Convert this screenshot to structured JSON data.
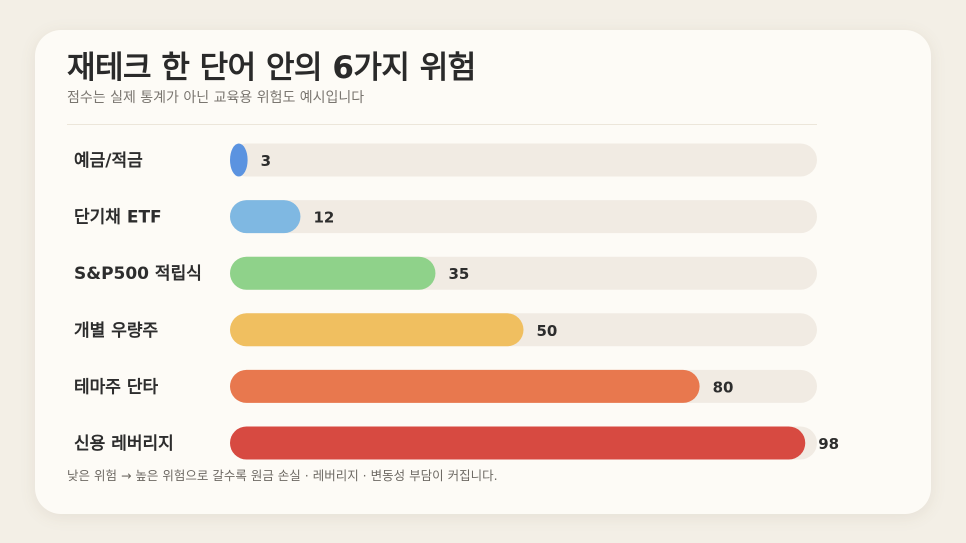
{
  "title": "재테크 한 단어 안의 6가지 위험",
  "subtitle": "점수는 실제 통계가 아닌 교육용 위험도 예시입니다",
  "footnote": "낮은 위험 → 높은 위험으로 갈수록 원금 손실 · 레버리지 · 변동성 부담이 커집니다.",
  "chart_data": {
    "type": "bar",
    "orientation": "horizontal",
    "categories": [
      "예금/적금",
      "단기채 ETF",
      "S&P500 적립식",
      "개별 우량주",
      "테마주 단타",
      "신용 레버리지"
    ],
    "values": [
      3,
      12,
      35,
      50,
      80,
      98
    ],
    "colors": [
      "#5b93e0",
      "#7fb8e2",
      "#8fd28a",
      "#f0bf60",
      "#e8784e",
      "#d74a41"
    ],
    "track_color": "#f1ebe3",
    "xlim": [
      0,
      100
    ],
    "grid": false,
    "legend": "none"
  }
}
